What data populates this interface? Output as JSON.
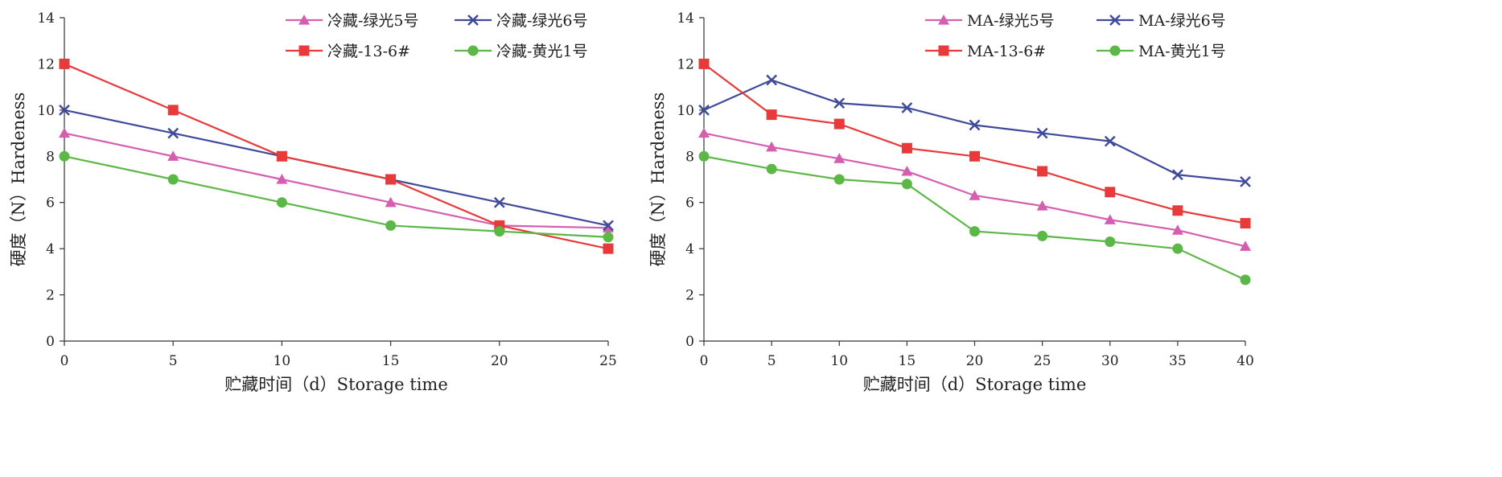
{
  "chart_data": [
    {
      "type": "line",
      "x": [
        0,
        5,
        10,
        15,
        20,
        25
      ],
      "xlim": [
        0,
        25
      ],
      "xticks": [
        0,
        5,
        10,
        15,
        20,
        25
      ],
      "ylim": [
        0,
        14
      ],
      "yticks": [
        0,
        2,
        4,
        6,
        8,
        10,
        12,
        14
      ],
      "xlabel": "贮藏时间（d）Storage time",
      "ylabel": "硬度（N）Hardeness",
      "grid": false,
      "legend_position": "top-right",
      "series": [
        {
          "name": "冷藏-绿光5号",
          "marker": "triangle",
          "color": "#d45fb0",
          "values": [
            9.0,
            8.0,
            7.0,
            6.0,
            5.0,
            4.9
          ]
        },
        {
          "name": "冷藏-绿光6号",
          "marker": "x",
          "color": "#3f4a9a",
          "values": [
            10.0,
            9.0,
            8.0,
            7.0,
            6.0,
            5.0
          ]
        },
        {
          "name": "冷藏-13-6#",
          "marker": "square",
          "color": "#e83a3a",
          "values": [
            12.0,
            10.0,
            8.0,
            7.0,
            5.0,
            4.0
          ]
        },
        {
          "name": "冷藏-黄光1号",
          "marker": "circle",
          "color": "#5bb847",
          "values": [
            8.0,
            7.0,
            6.0,
            5.0,
            4.75,
            4.5
          ]
        }
      ]
    },
    {
      "type": "line",
      "x": [
        0,
        5,
        10,
        15,
        20,
        25,
        30,
        35,
        40
      ],
      "xlim": [
        0,
        40
      ],
      "xticks": [
        0,
        5,
        10,
        15,
        20,
        25,
        30,
        35,
        40
      ],
      "ylim": [
        0,
        14
      ],
      "yticks": [
        0,
        2,
        4,
        6,
        8,
        10,
        12,
        14
      ],
      "xlabel": "贮藏时间（d）Storage time",
      "ylabel": "硬度（N）Hardeness",
      "grid": false,
      "legend_position": "top-right",
      "series": [
        {
          "name": "MA-绿光5号",
          "marker": "triangle",
          "color": "#d45fb0",
          "values": [
            9.0,
            8.4,
            7.9,
            7.35,
            6.3,
            5.85,
            5.25,
            4.8,
            4.1
          ]
        },
        {
          "name": "MA-绿光6号",
          "marker": "x",
          "color": "#3f4a9a",
          "values": [
            10.0,
            11.3,
            10.3,
            10.1,
            9.35,
            9.0,
            8.65,
            7.2,
            6.9
          ]
        },
        {
          "name": "MA-13-6#",
          "marker": "square",
          "color": "#e83a3a",
          "values": [
            12.0,
            9.8,
            9.4,
            8.35,
            8.0,
            7.35,
            6.45,
            5.65,
            5.1
          ]
        },
        {
          "name": "MA-黄光1号",
          "marker": "circle",
          "color": "#5bb847",
          "values": [
            8.0,
            7.45,
            7.0,
            6.8,
            4.75,
            4.55,
            4.3,
            4.0,
            2.65
          ]
        }
      ]
    }
  ]
}
